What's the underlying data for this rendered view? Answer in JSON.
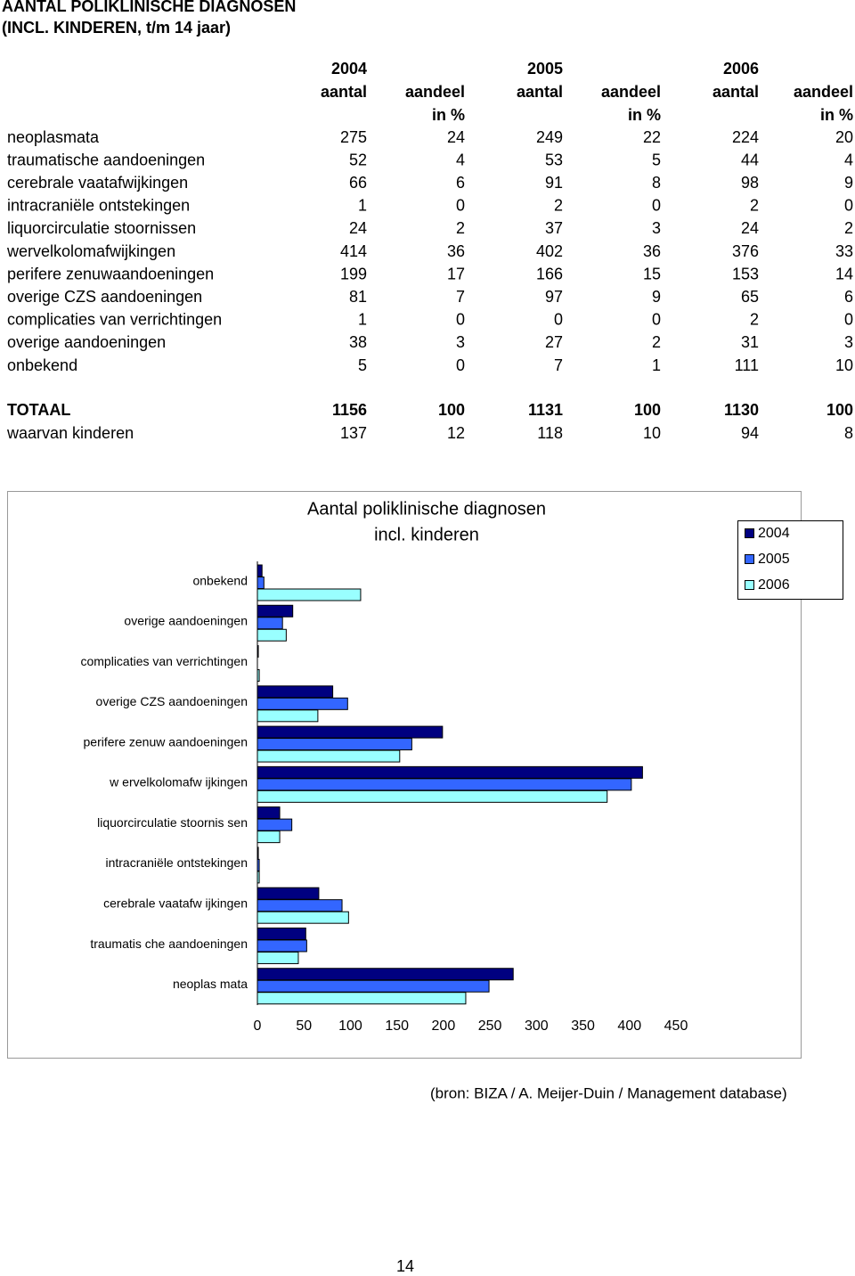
{
  "header": {
    "title": [
      "AANTAL POLIKLINISCHE DIAGNOSEN",
      "(INCL. KINDEREN, t/m 14 jaar)"
    ]
  },
  "table": {
    "groups": [
      {
        "year": "2004",
        "count": "aantal",
        "share": "aandeel",
        "share_unit": "in %"
      },
      {
        "year": "2005",
        "count": "aantal",
        "share": "aandeel",
        "share_unit": "in %"
      },
      {
        "year": "2006",
        "count": "aantal",
        "share": "aandeel",
        "share_unit": "in %"
      }
    ],
    "rows": [
      [
        "neoplasmata",
        275,
        24,
        249,
        22,
        224,
        20
      ],
      [
        "traumatische aandoeningen",
        52,
        4,
        53,
        5,
        44,
        4
      ],
      [
        "cerebrale vaatafwijkingen",
        66,
        6,
        91,
        8,
        98,
        9
      ],
      [
        "intracraniële ontstekingen",
        1,
        0,
        2,
        0,
        2,
        0
      ],
      [
        "liquorcirculatie stoornissen",
        24,
        2,
        37,
        3,
        24,
        2
      ],
      [
        "wervelkolomafwijkingen",
        414,
        36,
        402,
        36,
        376,
        33
      ],
      [
        "perifere zenuwaandoeningen",
        199,
        17,
        166,
        15,
        153,
        14
      ],
      [
        "overige CZS aandoeningen",
        81,
        7,
        97,
        9,
        65,
        6
      ],
      [
        "complicaties van verrichtingen",
        1,
        0,
        0,
        0,
        2,
        0
      ],
      [
        "overige aandoeningen",
        38,
        3,
        27,
        2,
        31,
        3
      ],
      [
        "onbekend",
        5,
        0,
        7,
        1,
        111,
        10
      ]
    ],
    "totals": [
      [
        "TOTAAL",
        1156,
        100,
        1131,
        100,
        1130,
        100
      ],
      [
        "waarvan kinderen",
        137,
        12,
        118,
        10,
        94,
        8
      ]
    ]
  },
  "chart_data": {
    "type": "bar",
    "orientation": "horizontal",
    "title": [
      "Aantal poliklinische diagnosen",
      "incl. kinderen"
    ],
    "categories": [
      "neoplas mata",
      "traumatis che aandoeningen",
      "cerebrale vaatafw ijkingen",
      "intracraniële ontstekingen",
      "liquorcirculatie stoornis sen",
      "w ervelkolomafw ijkingen",
      "perifere zenuw aandoeningen",
      "overige CZS aandoeningen",
      "complicaties van verrichtingen",
      "overige aandoeningen",
      "onbekend"
    ],
    "series": [
      {
        "name": "2004",
        "color": "#000080",
        "values": [
          275,
          52,
          66,
          1,
          24,
          414,
          199,
          81,
          1,
          38,
          5
        ]
      },
      {
        "name": "2005",
        "color": "#3366ff",
        "values": [
          249,
          53,
          91,
          2,
          37,
          402,
          166,
          97,
          0,
          27,
          7
        ]
      },
      {
        "name": "2006",
        "color": "#99ffff",
        "values": [
          224,
          44,
          98,
          2,
          24,
          376,
          153,
          65,
          2,
          31,
          111
        ]
      }
    ],
    "xlim": [
      0,
      450
    ],
    "xticks": [
      0,
      50,
      100,
      150,
      200,
      250,
      300,
      350,
      400,
      450
    ],
    "grid": false,
    "legend": "right"
  },
  "source": "(bron: BIZA / A. Meijer-Duin / Management database)",
  "page_number": "14"
}
